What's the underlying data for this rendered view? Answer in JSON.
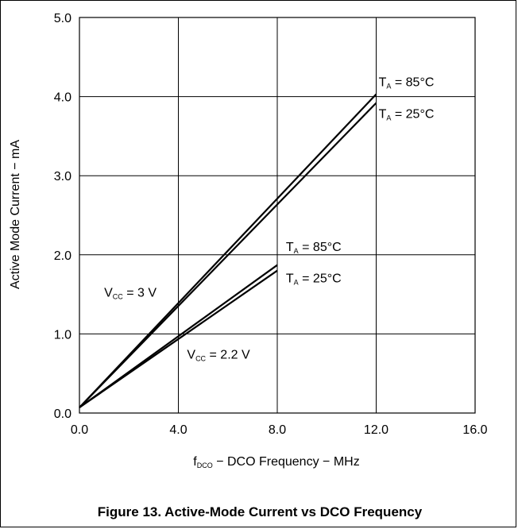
{
  "chart_data": {
    "type": "line",
    "caption": "Figure 13. Active-Mode Current vs DCO Frequency",
    "xlabel": {
      "pre": "f",
      "sub": "DCO",
      "post": " − DCO Frequency − MHz"
    },
    "ylabel": "Active Mode Current − mA",
    "xlim": [
      0,
      16
    ],
    "ylim": [
      0,
      5
    ],
    "x_ticks": [
      0,
      4,
      8,
      12,
      16
    ],
    "y_ticks": [
      0,
      1,
      2,
      3,
      4,
      5
    ],
    "x_tick_labels": [
      "0.0",
      "4.0",
      "8.0",
      "12.0",
      "16.0"
    ],
    "y_tick_labels": [
      "0.0",
      "1.0",
      "2.0",
      "3.0",
      "4.0",
      "5.0"
    ],
    "grid": true,
    "line_color": "#000000",
    "series": [
      {
        "key": "vcc3_85",
        "values": [
          [
            0,
            0.07
          ],
          [
            12,
            4.03
          ]
        ]
      },
      {
        "key": "vcc3_25",
        "values": [
          [
            0,
            0.07
          ],
          [
            12,
            3.92
          ]
        ]
      },
      {
        "key": "vcc22_85",
        "values": [
          [
            0,
            0.07
          ],
          [
            8,
            1.87
          ]
        ]
      },
      {
        "key": "vcc22_25",
        "values": [
          [
            0,
            0.07
          ],
          [
            8,
            1.8
          ]
        ]
      }
    ],
    "annotations": [
      {
        "key": "ta85_high",
        "pre": "T",
        "sub": "A",
        "post": " = 85°C",
        "x": 12.1,
        "y": 4.13
      },
      {
        "key": "ta25_high",
        "pre": "T",
        "sub": "A",
        "post": " = 25°C",
        "x": 12.1,
        "y": 3.73
      },
      {
        "key": "ta85_low",
        "pre": "T",
        "sub": "A",
        "post": " = 85°C",
        "x": 8.35,
        "y": 2.05
      },
      {
        "key": "ta25_low",
        "pre": "T",
        "sub": "A",
        "post": " = 25°C",
        "x": 8.35,
        "y": 1.65
      },
      {
        "key": "vcc3",
        "pre": "V",
        "sub": "CC",
        "post": " = 3 V",
        "x": 1.0,
        "y": 1.47
      },
      {
        "key": "vcc22",
        "pre": "V",
        "sub": "CC",
        "post": " = 2.2 V",
        "x": 4.35,
        "y": 0.69
      }
    ]
  }
}
